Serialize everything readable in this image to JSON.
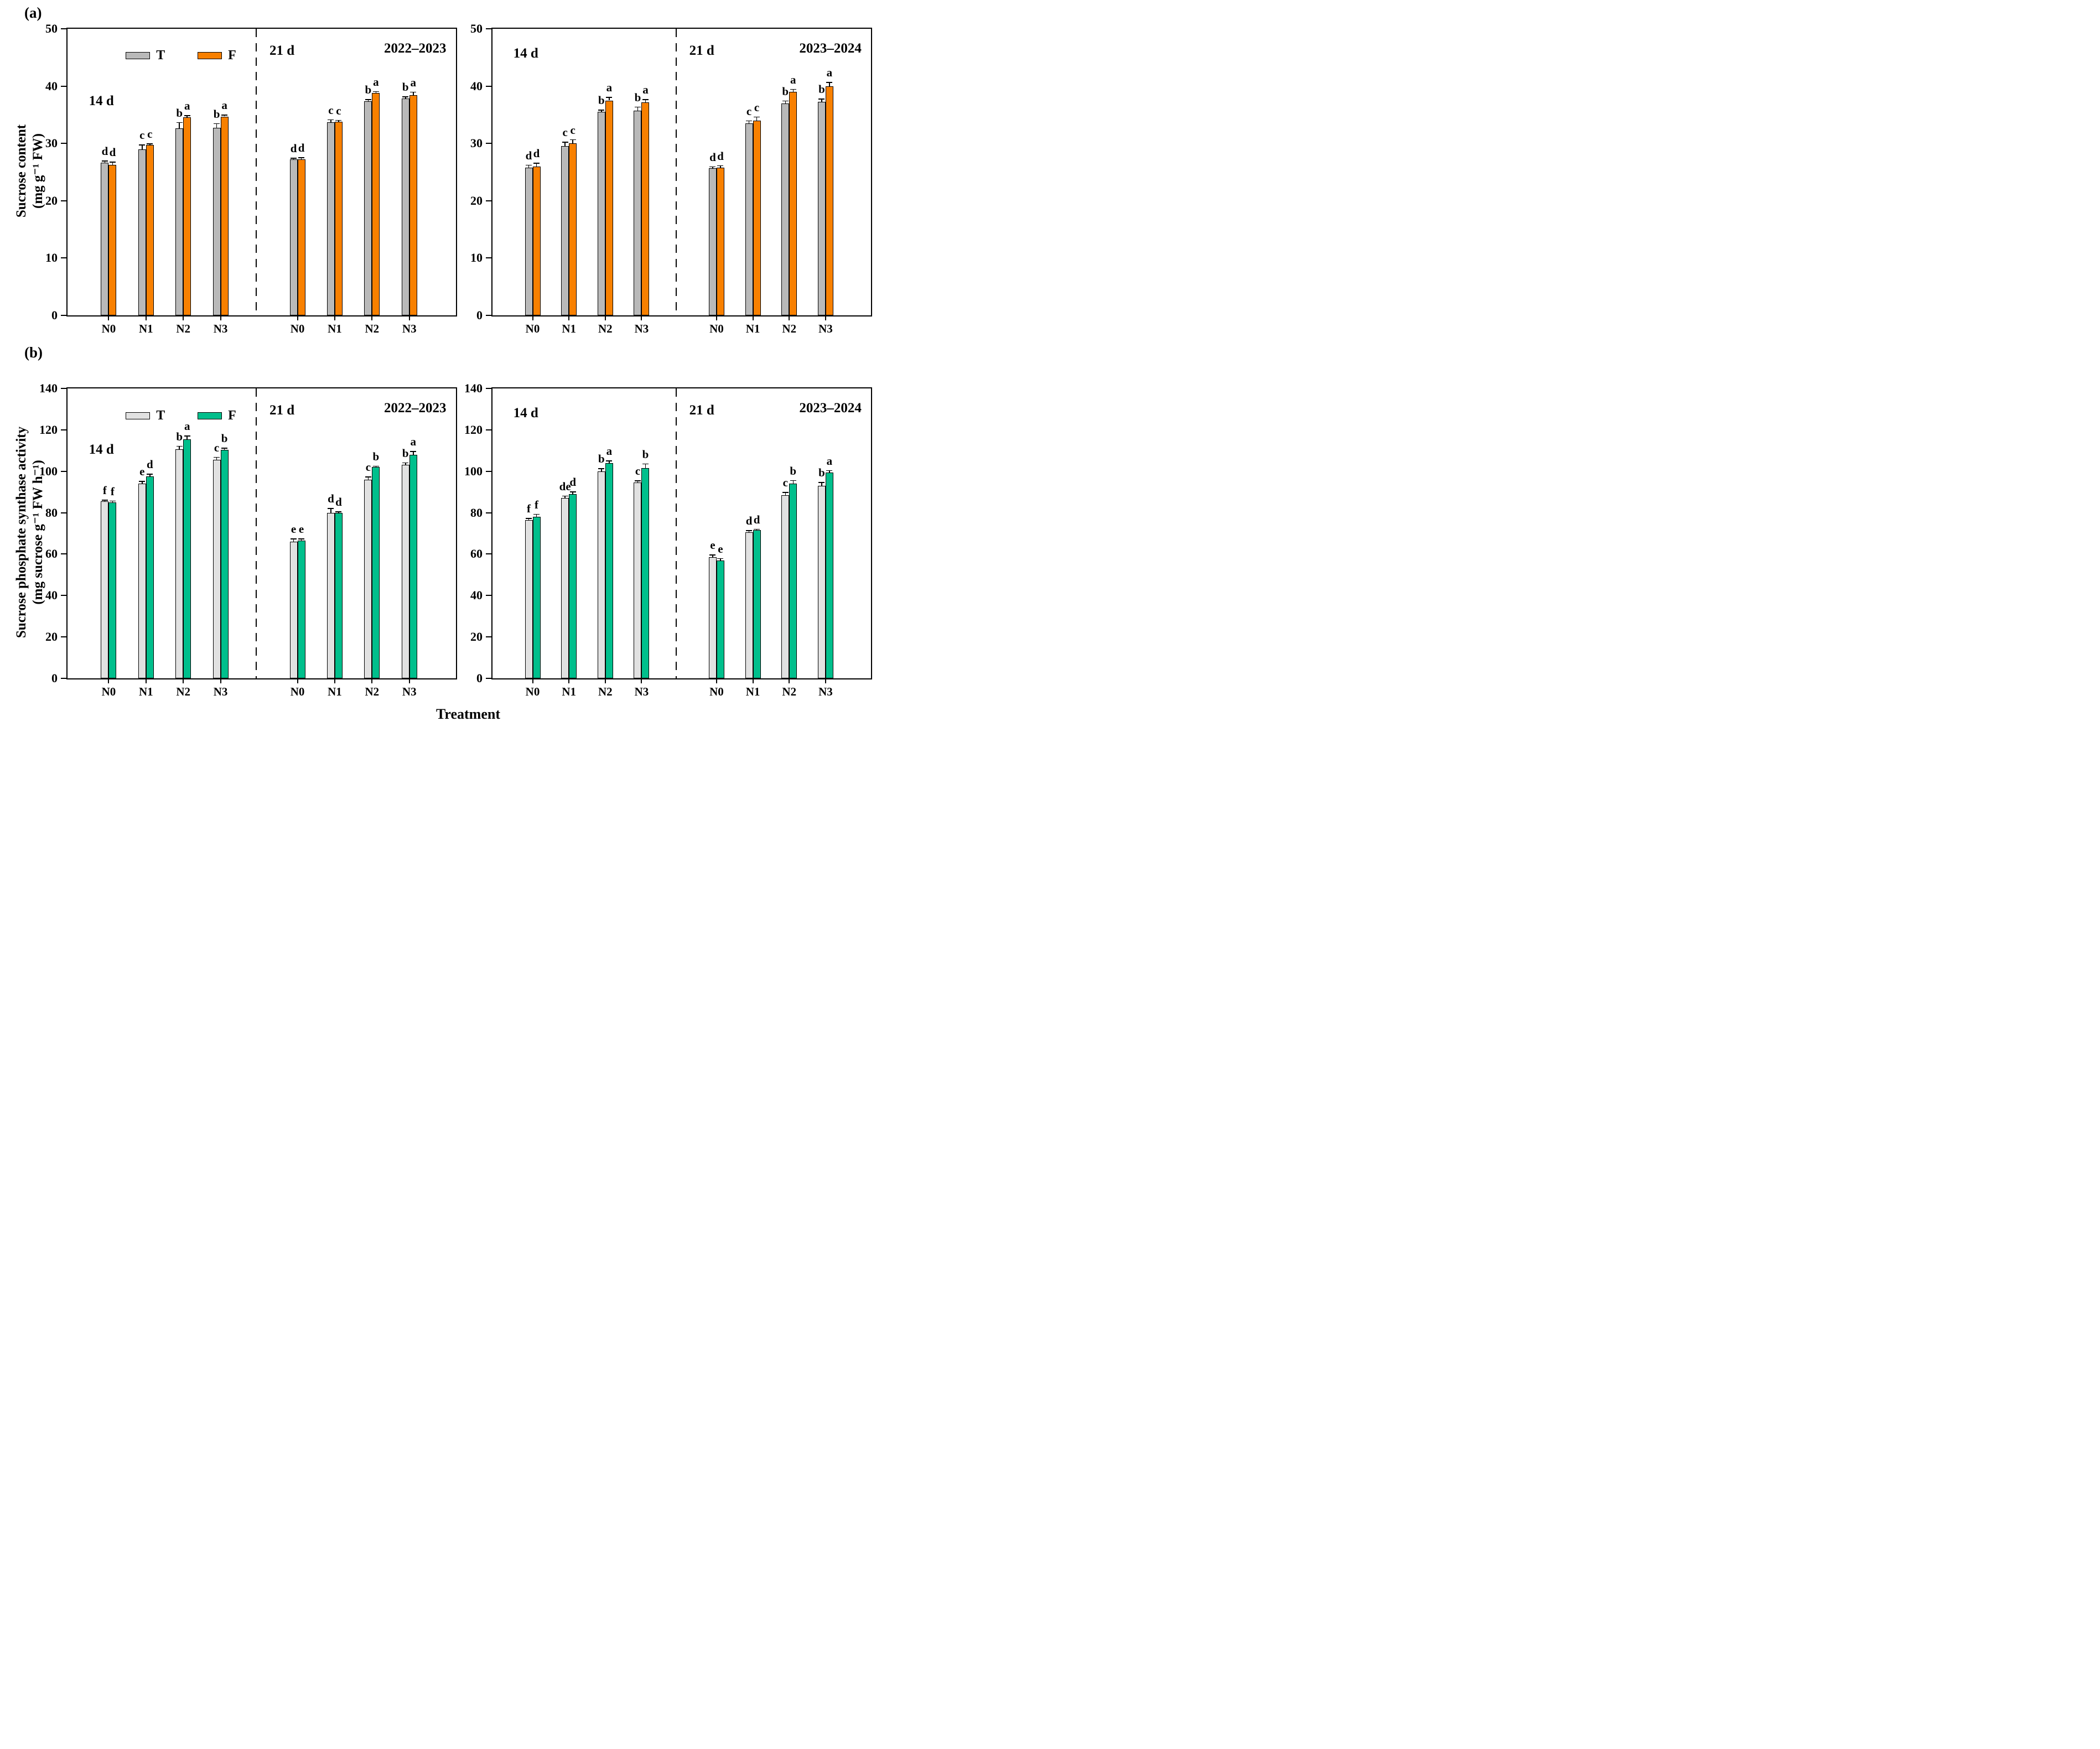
{
  "figure": {
    "panel_a_label": "(a)",
    "panel_b_label": "(b)",
    "x_axis_title": "Treatment",
    "row_a": {
      "y_axis_title_line1": "Sucrose content",
      "y_axis_title_line2": "(mg g⁻¹ FW)",
      "ylim": [
        0,
        50
      ],
      "yticks": [
        0,
        10,
        20,
        30,
        40,
        50
      ],
      "colors": {
        "T": "#b9b9b9",
        "F": "#f88000"
      },
      "legend": {
        "T": "T",
        "F": "F"
      }
    },
    "row_b": {
      "y_axis_title_line1": "Sucrose phosphate synthase activity",
      "y_axis_title_line2": "(mg sucrose g⁻¹ FW h⁻¹)",
      "ylim": [
        0,
        140
      ],
      "yticks": [
        0,
        20,
        40,
        60,
        80,
        100,
        120,
        140
      ],
      "colors": {
        "T": "#e1e1e1",
        "F": "#00bf8c"
      },
      "legend": {
        "T": "T",
        "F": "F"
      }
    }
  },
  "chart_data": [
    {
      "type": "bar",
      "id": "a-2022-2023",
      "row": "a",
      "year_label": "2022–2023",
      "show_legend": true,
      "series_names": [
        "T",
        "F"
      ],
      "sections": [
        {
          "label": "14 d",
          "groups": [
            {
              "cat": "N0",
              "T": {
                "value": 26.6,
                "err": 0.3,
                "sig": "d"
              },
              "F": {
                "value": 26.3,
                "err": 0.4,
                "sig": "d"
              }
            },
            {
              "cat": "N1",
              "T": {
                "value": 29.0,
                "err": 0.7,
                "sig": "c"
              },
              "F": {
                "value": 29.7,
                "err": 0.2,
                "sig": "c"
              }
            },
            {
              "cat": "N2",
              "T": {
                "value": 32.6,
                "err": 1.0,
                "sig": "b"
              },
              "F": {
                "value": 34.6,
                "err": 0.2,
                "sig": "a"
              }
            },
            {
              "cat": "N3",
              "T": {
                "value": 32.7,
                "err": 0.7,
                "sig": "b"
              },
              "F": {
                "value": 34.7,
                "err": 0.2,
                "sig": "a"
              }
            }
          ]
        },
        {
          "label": "21 d",
          "groups": [
            {
              "cat": "N0",
              "T": {
                "value": 27.2,
                "err": 0.2,
                "sig": "d"
              },
              "F": {
                "value": 27.2,
                "err": 0.3,
                "sig": "d"
              }
            },
            {
              "cat": "N1",
              "T": {
                "value": 33.7,
                "err": 0.4,
                "sig": "c"
              },
              "F": {
                "value": 33.8,
                "err": 0.2,
                "sig": "c"
              }
            },
            {
              "cat": "N2",
              "T": {
                "value": 37.4,
                "err": 0.2,
                "sig": "b"
              },
              "F": {
                "value": 38.8,
                "err": 0.2,
                "sig": "a"
              }
            },
            {
              "cat": "N3",
              "T": {
                "value": 37.8,
                "err": 0.3,
                "sig": "b"
              },
              "F": {
                "value": 38.4,
                "err": 0.5,
                "sig": "a"
              }
            }
          ]
        }
      ]
    },
    {
      "type": "bar",
      "id": "a-2023-2024",
      "row": "a",
      "year_label": "2023–2024",
      "show_legend": false,
      "series_names": [
        "T",
        "F"
      ],
      "sections": [
        {
          "label": "14 d",
          "groups": [
            {
              "cat": "N0",
              "T": {
                "value": 25.8,
                "err": 0.4,
                "sig": "d"
              },
              "F": {
                "value": 26.0,
                "err": 0.5,
                "sig": "d"
              }
            },
            {
              "cat": "N1",
              "T": {
                "value": 29.5,
                "err": 0.7,
                "sig": "c"
              },
              "F": {
                "value": 30.0,
                "err": 0.6,
                "sig": "c"
              }
            },
            {
              "cat": "N2",
              "T": {
                "value": 35.5,
                "err": 0.3,
                "sig": "b"
              },
              "F": {
                "value": 37.5,
                "err": 0.5,
                "sig": "a"
              }
            },
            {
              "cat": "N3",
              "T": {
                "value": 35.7,
                "err": 0.6,
                "sig": "b"
              },
              "F": {
                "value": 37.2,
                "err": 0.4,
                "sig": "a"
              }
            }
          ]
        },
        {
          "label": "21 d",
          "groups": [
            {
              "cat": "N0",
              "T": {
                "value": 25.7,
                "err": 0.2,
                "sig": "d"
              },
              "F": {
                "value": 25.8,
                "err": 0.3,
                "sig": "d"
              }
            },
            {
              "cat": "N1",
              "T": {
                "value": 33.5,
                "err": 0.4,
                "sig": "c"
              },
              "F": {
                "value": 34.0,
                "err": 0.6,
                "sig": "c"
              }
            },
            {
              "cat": "N2",
              "T": {
                "value": 37.0,
                "err": 0.4,
                "sig": "b"
              },
              "F": {
                "value": 39.0,
                "err": 0.4,
                "sig": "a"
              }
            },
            {
              "cat": "N3",
              "T": {
                "value": 37.3,
                "err": 0.4,
                "sig": "b"
              },
              "F": {
                "value": 40.0,
                "err": 0.6,
                "sig": "a"
              }
            }
          ]
        }
      ]
    },
    {
      "type": "bar",
      "id": "b-2022-2023",
      "row": "b",
      "year_label": "2022–2023",
      "show_legend": true,
      "series_names": [
        "T",
        "F"
      ],
      "sections": [
        {
          "label": "14 d",
          "groups": [
            {
              "cat": "N0",
              "T": {
                "value": 85.5,
                "err": 0.4,
                "sig": "f"
              },
              "F": {
                "value": 85.0,
                "err": 0.5,
                "sig": "f"
              }
            },
            {
              "cat": "N1",
              "T": {
                "value": 94.0,
                "err": 1.0,
                "sig": "e"
              },
              "F": {
                "value": 97.5,
                "err": 1.0,
                "sig": "d"
              }
            },
            {
              "cat": "N2",
              "T": {
                "value": 110.5,
                "err": 1.5,
                "sig": "b"
              },
              "F": {
                "value": 115.5,
                "err": 1.5,
                "sig": "a"
              }
            },
            {
              "cat": "N3",
              "T": {
                "value": 105.5,
                "err": 1.2,
                "sig": "c"
              },
              "F": {
                "value": 110.3,
                "err": 0.8,
                "sig": "b"
              }
            }
          ]
        },
        {
          "label": "21 d",
          "groups": [
            {
              "cat": "N0",
              "T": {
                "value": 66.0,
                "err": 1.2,
                "sig": "e"
              },
              "F": {
                "value": 66.5,
                "err": 0.8,
                "sig": "e"
              }
            },
            {
              "cat": "N1",
              "T": {
                "value": 80.0,
                "err": 2.0,
                "sig": "d"
              },
              "F": {
                "value": 79.8,
                "err": 0.6,
                "sig": "d"
              }
            },
            {
              "cat": "N2",
              "T": {
                "value": 96.0,
                "err": 1.2,
                "sig": "c"
              },
              "F": {
                "value": 102.0,
                "err": 0.4,
                "sig": "b"
              }
            },
            {
              "cat": "N3",
              "T": {
                "value": 103.0,
                "err": 1.0,
                "sig": "b"
              },
              "F": {
                "value": 108.0,
                "err": 1.5,
                "sig": "a"
              }
            }
          ]
        }
      ]
    },
    {
      "type": "bar",
      "id": "b-2023-2024",
      "row": "b",
      "year_label": "2023–2024",
      "show_legend": false,
      "series_names": [
        "T",
        "F"
      ],
      "sections": [
        {
          "label": "14 d",
          "groups": [
            {
              "cat": "N0",
              "T": {
                "value": 76.5,
                "err": 0.6,
                "sig": "f"
              },
              "F": {
                "value": 78.0,
                "err": 1.2,
                "sig": "f"
              }
            },
            {
              "cat": "N1",
              "T": {
                "value": 87.0,
                "err": 1.0,
                "sig": "de"
              },
              "F": {
                "value": 89.0,
                "err": 1.0,
                "sig": "d"
              }
            },
            {
              "cat": "N2",
              "T": {
                "value": 100.0,
                "err": 1.2,
                "sig": "b"
              },
              "F": {
                "value": 104.0,
                "err": 1.0,
                "sig": "a"
              }
            },
            {
              "cat": "N3",
              "T": {
                "value": 94.5,
                "err": 0.8,
                "sig": "c"
              },
              "F": {
                "value": 101.5,
                "err": 2.0,
                "sig": "b"
              }
            }
          ]
        },
        {
          "label": "21 d",
          "groups": [
            {
              "cat": "N0",
              "T": {
                "value": 58.5,
                "err": 1.0,
                "sig": "e"
              },
              "F": {
                "value": 57.0,
                "err": 0.8,
                "sig": "e"
              }
            },
            {
              "cat": "N1",
              "T": {
                "value": 70.5,
                "err": 0.8,
                "sig": "d"
              },
              "F": {
                "value": 71.5,
                "err": 0.5,
                "sig": "d"
              }
            },
            {
              "cat": "N2",
              "T": {
                "value": 88.5,
                "err": 1.2,
                "sig": "c"
              },
              "F": {
                "value": 94.0,
                "err": 1.5,
                "sig": "b"
              }
            },
            {
              "cat": "N3",
              "T": {
                "value": 93.0,
                "err": 1.5,
                "sig": "b"
              },
              "F": {
                "value": 99.5,
                "err": 0.8,
                "sig": "a"
              }
            }
          ]
        }
      ]
    }
  ]
}
